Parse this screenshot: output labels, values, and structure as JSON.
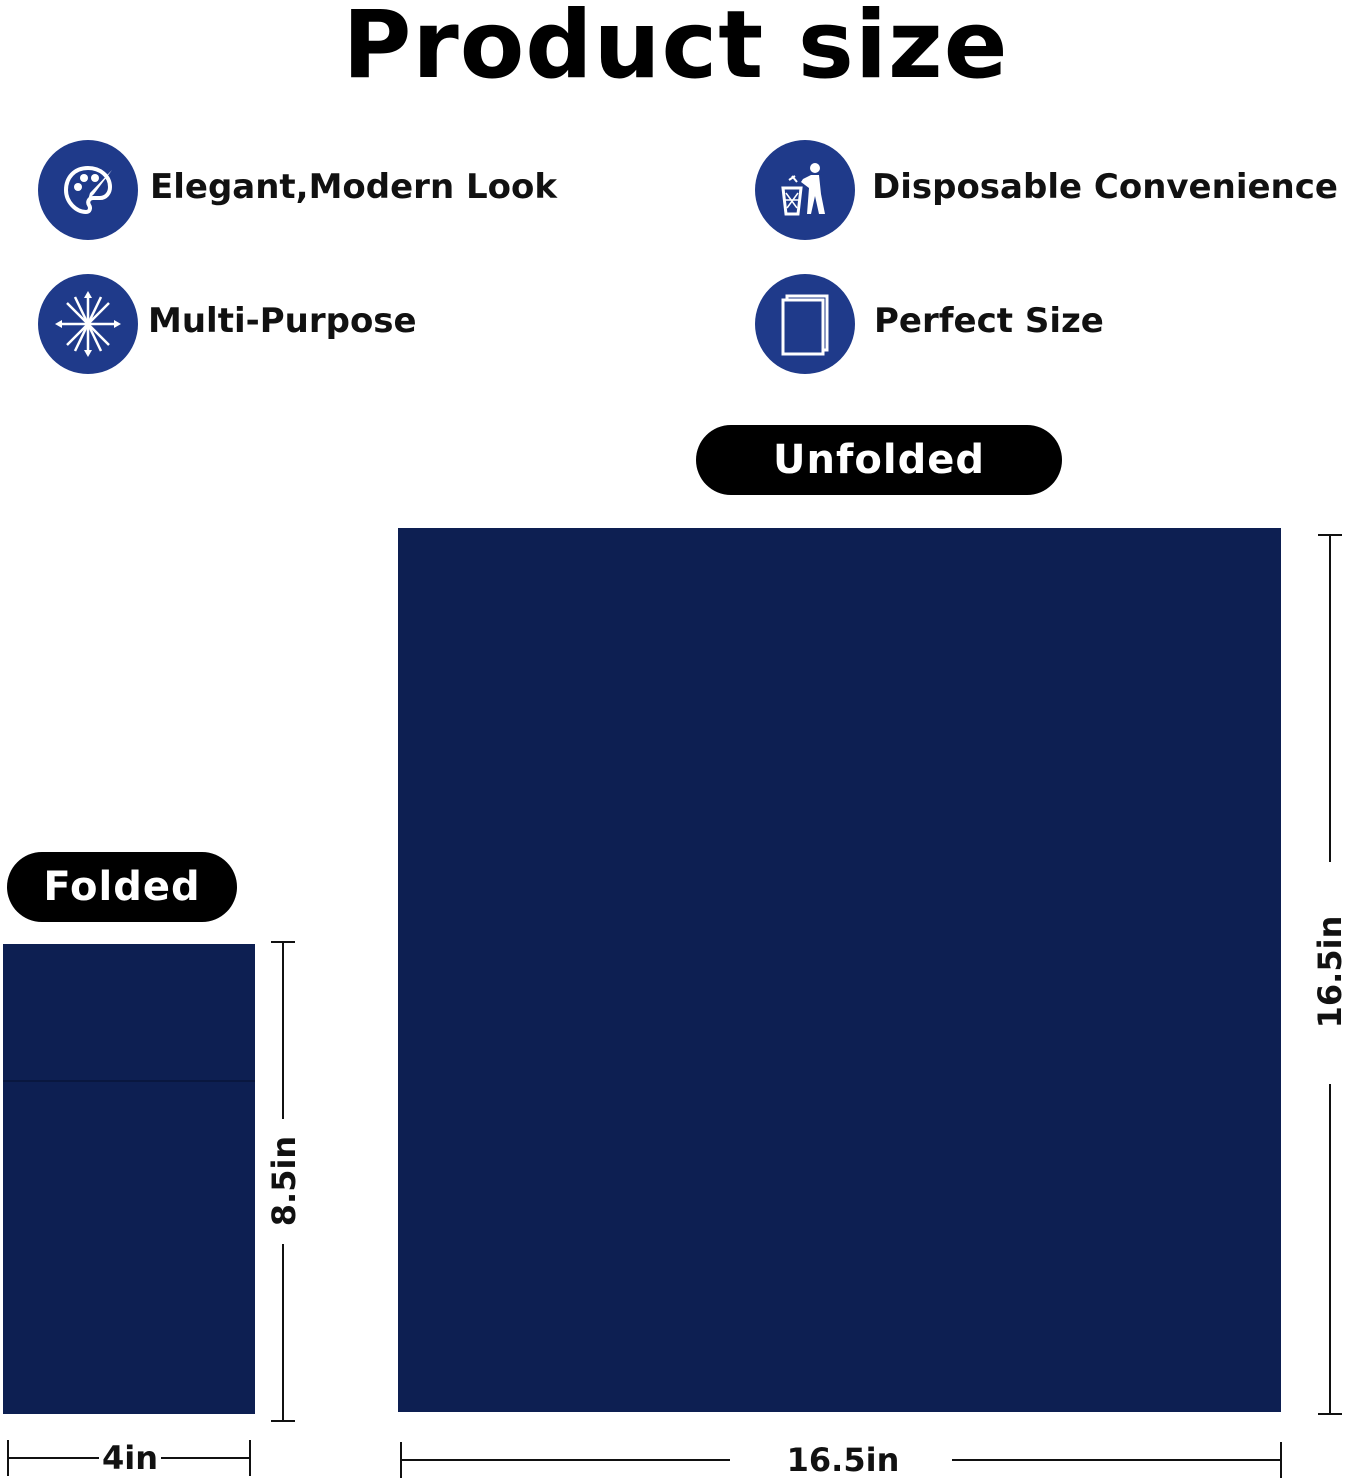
{
  "title": "Product size",
  "colors": {
    "accent": "#1f3a8a",
    "napkin": "#0d1f52",
    "pill": "#000000"
  },
  "features": [
    {
      "label": "Elegant,Modern Look",
      "icon": "palette-icon"
    },
    {
      "label": "Disposable Convenience",
      "icon": "trash-bin-icon"
    },
    {
      "label": "Multi-Purpose",
      "icon": "multi-arrow-icon"
    },
    {
      "label": "Perfect Size",
      "icon": "napkin-size-icon"
    }
  ],
  "unfolded": {
    "label": "Unfolded",
    "width": "16.5in",
    "height": "16.5in"
  },
  "folded": {
    "label": "Folded",
    "width": "4in",
    "height": "8.5in"
  }
}
